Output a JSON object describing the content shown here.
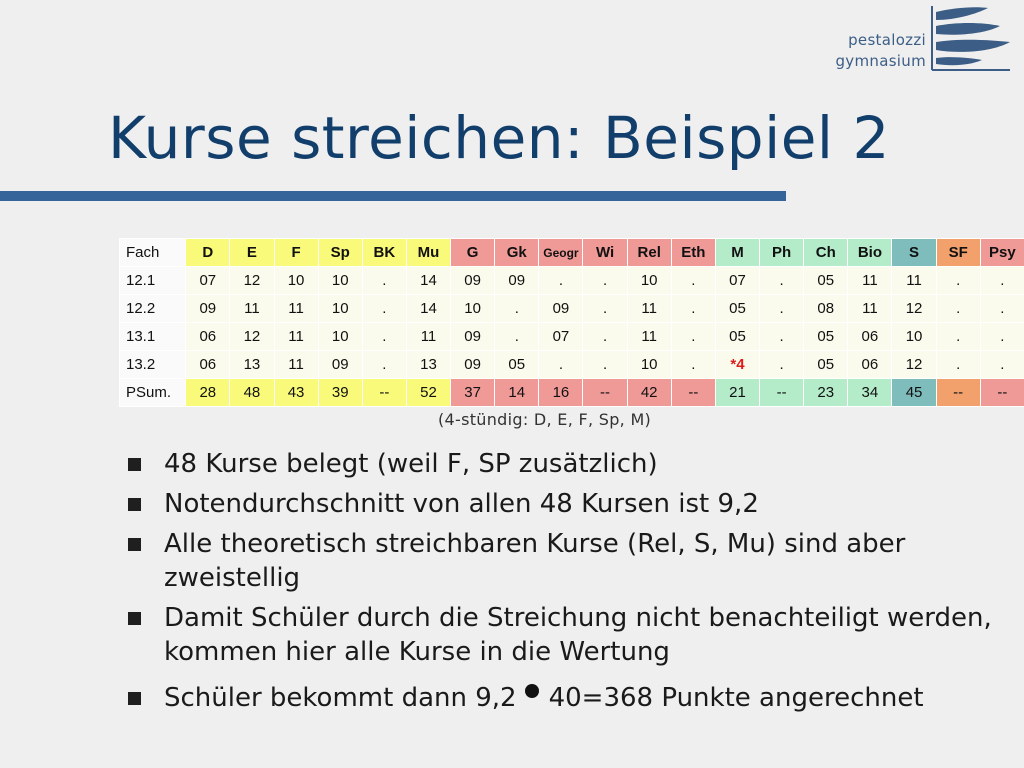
{
  "logo": {
    "line1": "pestalozzi",
    "line2": "gymnasium",
    "color": "#3c5e86",
    "icon": "pestalozzi-wave-logo"
  },
  "title": "Kurse streichen: Beispiel 2",
  "table": {
    "corner": "Fach",
    "columns": [
      {
        "label": "D",
        "color": "#fafa7a"
      },
      {
        "label": "E",
        "color": "#fafa7a"
      },
      {
        "label": "F",
        "color": "#fafa7a"
      },
      {
        "label": "Sp",
        "color": "#fafa7a"
      },
      {
        "label": "BK",
        "color": "#fafa7a"
      },
      {
        "label": "Mu",
        "color": "#fafa7a"
      },
      {
        "label": "G",
        "color": "#f09a98"
      },
      {
        "label": "Gk",
        "color": "#f09a98"
      },
      {
        "label": "Geogr",
        "color": "#f09a98"
      },
      {
        "label": "Wi",
        "color": "#f09a98"
      },
      {
        "label": "Rel",
        "color": "#f09a98"
      },
      {
        "label": "Eth",
        "color": "#f09a98"
      },
      {
        "label": "M",
        "color": "#b4ecca"
      },
      {
        "label": "Ph",
        "color": "#b4ecca"
      },
      {
        "label": "Ch",
        "color": "#b4ecca"
      },
      {
        "label": "Bio",
        "color": "#b4ecca"
      },
      {
        "label": "S",
        "color": "#7fbcbc"
      },
      {
        "label": "SF",
        "color": "#f2a06c"
      },
      {
        "label": "Psy",
        "color": "#f09a98"
      }
    ],
    "rows": [
      {
        "label": "12.1",
        "cells": [
          "07",
          "12",
          "10",
          "10",
          ".",
          "14",
          "09",
          "09",
          ".",
          ".",
          "10",
          ".",
          "07",
          ".",
          "05",
          "11",
          "11",
          ".",
          "."
        ]
      },
      {
        "label": "12.2",
        "cells": [
          "09",
          "11",
          "11",
          "10",
          ".",
          "14",
          "10",
          ".",
          "09",
          ".",
          "11",
          ".",
          "05",
          ".",
          "08",
          "11",
          "12",
          ".",
          "."
        ]
      },
      {
        "label": "13.1",
        "cells": [
          "06",
          "12",
          "11",
          "10",
          ".",
          "11",
          "09",
          ".",
          "07",
          ".",
          "11",
          ".",
          "05",
          ".",
          "05",
          "06",
          "10",
          ".",
          "."
        ]
      },
      {
        "label": "13.2",
        "cells": [
          "06",
          "13",
          "11",
          "09",
          ".",
          "13",
          "09",
          "05",
          ".",
          ".",
          "10",
          ".",
          "*4",
          ".",
          "05",
          "06",
          "12",
          ".",
          "."
        ]
      }
    ],
    "sum_row": {
      "label": "PSum.",
      "cells": [
        "28",
        "48",
        "43",
        "39",
        "--",
        "52",
        "37",
        "14",
        "16",
        "--",
        "42",
        "--",
        "21",
        "--",
        "23",
        "34",
        "45",
        "--",
        "--"
      ]
    },
    "highlight_color": "#e01b1b"
  },
  "caption": "(4-stündig: D, E, F, Sp, M)",
  "bullets": [
    "48 Kurse belegt (weil F, SP zusätzlich)",
    "Notendurchschnitt von allen 48 Kursen ist 9,2",
    "Alle theoretisch streichbaren Kurse (Rel, S, Mu) sind aber zweistellig",
    "Damit Schüler durch die Streichung nicht benachteiligt werden, kommen hier alle Kurse in die Wertung"
  ],
  "last_bullet": {
    "before": "Schüler bekommt dann 9,2",
    "after": "40=368 Punkte angerechnet"
  }
}
